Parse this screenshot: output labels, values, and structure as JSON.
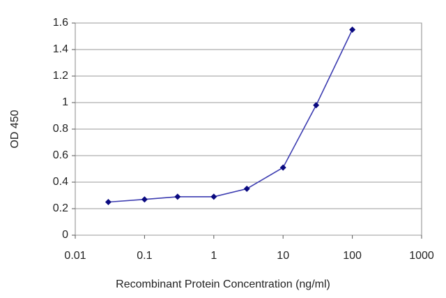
{
  "chart_data": {
    "type": "line",
    "x_label": "Recombinant Protein Concentration (ng/ml)",
    "y_label": "OD 450",
    "x": [
      0.03,
      0.1,
      0.3,
      1,
      3,
      10,
      30,
      100
    ],
    "series": [
      {
        "name": "OD 450",
        "color": "#3b3bb0",
        "marker_color": "#0a0a80",
        "values": [
          0.25,
          0.27,
          0.29,
          0.29,
          0.35,
          0.51,
          0.98,
          1.55
        ]
      }
    ],
    "xscale": "log",
    "xlim": [
      0.01,
      1000
    ],
    "xticks": [
      0.01,
      0.1,
      1,
      10,
      100,
      1000
    ],
    "ylim": [
      0,
      1.6
    ],
    "yticks": [
      0,
      0.2,
      0.4,
      0.6,
      0.8,
      1,
      1.2,
      1.4,
      1.6
    ],
    "grid": true
  }
}
